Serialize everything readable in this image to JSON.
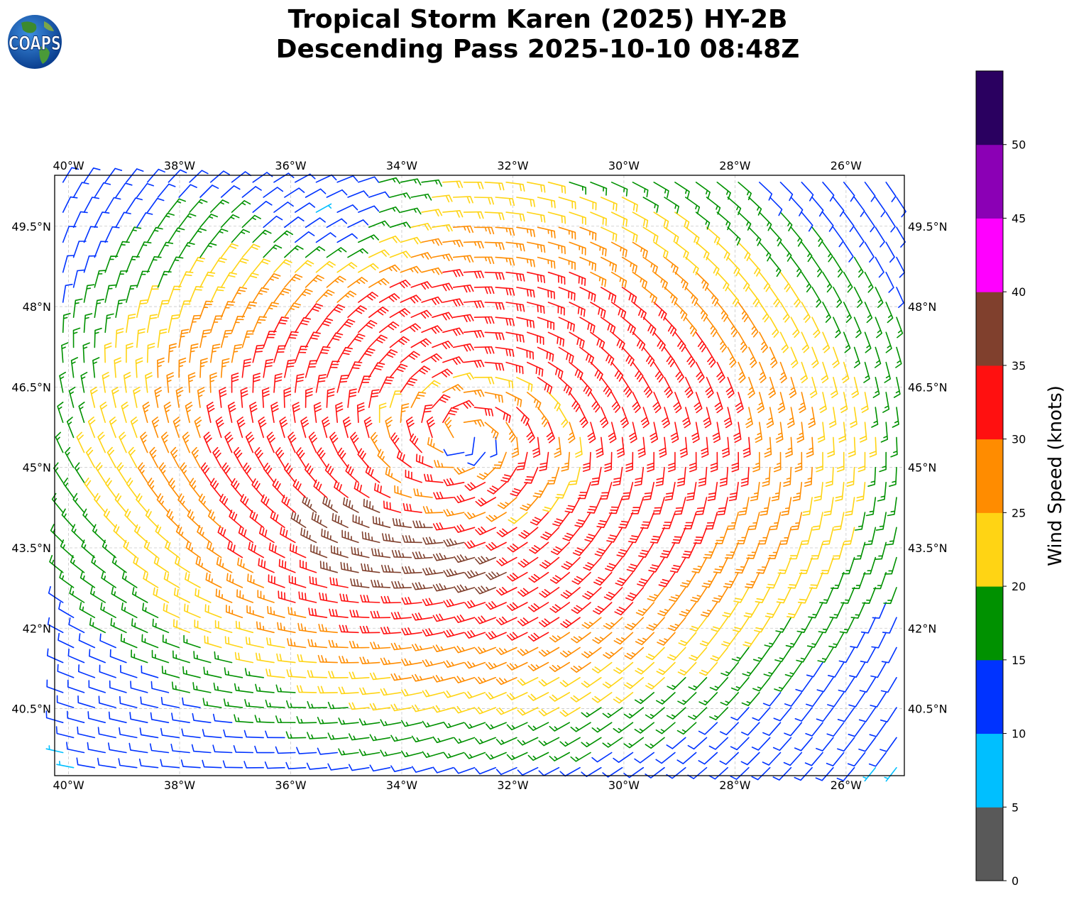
{
  "title": {
    "line1": "Tropical Storm Karen (2025) HY-2B",
    "line2": "Descending Pass 2025-10-10 08:48Z"
  },
  "logo": {
    "text": "COAPS",
    "icon": "globe-icon"
  },
  "map": {
    "lon_range": [
      -40.25,
      -24.95
    ],
    "lat_range": [
      39.25,
      50.45
    ],
    "lon_ticks": [
      {
        "value": -40,
        "label": "40°W"
      },
      {
        "value": -38,
        "label": "38°W"
      },
      {
        "value": -36,
        "label": "36°W"
      },
      {
        "value": -34,
        "label": "34°W"
      },
      {
        "value": -32,
        "label": "32°W"
      },
      {
        "value": -30,
        "label": "30°W"
      },
      {
        "value": -28,
        "label": "28°W"
      },
      {
        "value": -26,
        "label": "26°W"
      }
    ],
    "lat_ticks": [
      {
        "value": 40.5,
        "label": "40.5°N"
      },
      {
        "value": 42,
        "label": "42°N"
      },
      {
        "value": 43.5,
        "label": "43.5°N"
      },
      {
        "value": 45,
        "label": "45°N"
      },
      {
        "value": 46.5,
        "label": "46.5°N"
      },
      {
        "value": 48,
        "label": "48°N"
      },
      {
        "value": 49.5,
        "label": "49.5°N"
      }
    ],
    "grid": true,
    "grid_style": "dashed light gray",
    "storm_center": {
      "lon": -32.6,
      "lat": 45.4
    },
    "weak_wind_region": {
      "lon": -35.4,
      "lat": 49.5
    }
  },
  "colorbar": {
    "label": "Wind Speed (knots)",
    "ticks": [
      "0",
      "5",
      "10",
      "15",
      "20",
      "25",
      "30",
      "35",
      "40",
      "45",
      "50"
    ],
    "bins": [
      {
        "min": 0,
        "max": 5,
        "color": "#595959"
      },
      {
        "min": 5,
        "max": 10,
        "color": "#00bfff"
      },
      {
        "min": 10,
        "max": 15,
        "color": "#0033ff"
      },
      {
        "min": 15,
        "max": 20,
        "color": "#009100"
      },
      {
        "min": 20,
        "max": 25,
        "color": "#ffd414"
      },
      {
        "min": 25,
        "max": 30,
        "color": "#ff8c00"
      },
      {
        "min": 30,
        "max": 35,
        "color": "#ff1010"
      },
      {
        "min": 35,
        "max": 40,
        "color": "#80402d"
      },
      {
        "min": 40,
        "max": 45,
        "color": "#ff00ff"
      },
      {
        "min": 45,
        "max": 50,
        "color": "#8b00b5"
      },
      {
        "min": 50,
        "max": 55,
        "color": "#2a0060"
      }
    ]
  }
}
